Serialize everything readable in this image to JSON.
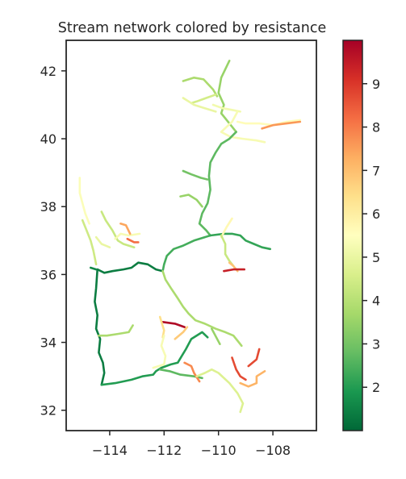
{
  "chart_data": {
    "type": "line",
    "title": "Stream network colored by resistance",
    "xlabel": "",
    "ylabel": "",
    "xlim": [
      -115.6,
      -106.4
    ],
    "ylim": [
      31.4,
      42.9
    ],
    "xticks": [
      -114,
      -112,
      -110,
      -108
    ],
    "xtick_labels": [
      "−114",
      "−112",
      "−110",
      "−108"
    ],
    "yticks": [
      32,
      34,
      36,
      38,
      40,
      42
    ],
    "ytick_labels": [
      "32",
      "34",
      "36",
      "38",
      "40",
      "42"
    ],
    "grid": false,
    "colorbar": {
      "colormap": "RdYlGn_r",
      "range": [
        1.0,
        10.0
      ],
      "ticks": [
        2,
        3,
        4,
        5,
        6,
        7,
        8,
        9
      ],
      "tick_labels": [
        "2",
        "3",
        "4",
        "5",
        "6",
        "7",
        "8",
        "9"
      ],
      "colors": [
        "#006837",
        "#1a9850",
        "#66bd63",
        "#a6d96a",
        "#d9ef8b",
        "#ffffbf",
        "#fee08b",
        "#fdae61",
        "#f46d43",
        "#d73027",
        "#a50026"
      ]
    },
    "series": [
      {
        "resistance": 3.5,
        "x": [
          -109.6,
          -109.9,
          -110.0,
          -109.8,
          -109.9,
          -109.6,
          -109.35
        ],
        "y": [
          42.3,
          41.8,
          41.35,
          41.0,
          40.75,
          40.45,
          40.2
        ]
      },
      {
        "resistance": 3.8,
        "x": [
          -111.3,
          -110.9,
          -110.55,
          -110.2,
          -110.05
        ],
        "y": [
          41.7,
          41.8,
          41.75,
          41.45,
          41.25
        ]
      },
      {
        "resistance": 4.5,
        "x": [
          -110.1,
          -110.45,
          -110.8,
          -111.0
        ],
        "y": [
          41.3,
          41.2,
          41.1,
          41.05
        ]
      },
      {
        "resistance": 5.2,
        "x": [
          -110.2,
          -109.85,
          -109.5,
          -109.2
        ],
        "y": [
          41.0,
          40.9,
          40.85,
          40.8
        ]
      },
      {
        "resistance": 5.0,
        "x": [
          -111.3,
          -110.9,
          -110.5,
          -110.1
        ],
        "y": [
          41.2,
          41.0,
          40.9,
          40.8
        ]
      },
      {
        "resistance": 5.6,
        "x": [
          -109.3,
          -109.0,
          -108.5,
          -108.0,
          -107.5,
          -107.0
        ],
        "y": [
          40.5,
          40.45,
          40.45,
          40.4,
          40.5,
          40.55
        ]
      },
      {
        "resistance": 7.6,
        "x": [
          -108.4,
          -108.0,
          -107.5,
          -107.0
        ],
        "y": [
          40.3,
          40.4,
          40.45,
          40.5
        ]
      },
      {
        "resistance": 5.3,
        "x": [
          -109.3,
          -109.5,
          -109.9,
          -109.55,
          -109.1,
          -108.6,
          -108.3
        ],
        "y": [
          40.8,
          40.5,
          40.2,
          40.05,
          40.0,
          39.95,
          39.9
        ]
      },
      {
        "resistance": 2.7,
        "x": [
          -109.35,
          -109.6,
          -109.9,
          -110.1,
          -110.3,
          -110.35,
          -110.3,
          -110.4,
          -110.6,
          -110.7,
          -110.45,
          -110.3
        ],
        "y": [
          40.2,
          40.0,
          39.85,
          39.6,
          39.3,
          38.9,
          38.5,
          38.1,
          37.8,
          37.5,
          37.3,
          37.15
        ]
      },
      {
        "resistance": 3.0,
        "x": [
          -111.3,
          -111.0,
          -110.65,
          -110.4
        ],
        "y": [
          39.05,
          38.95,
          38.85,
          38.8
        ]
      },
      {
        "resistance": 3.5,
        "x": [
          -111.4,
          -111.1,
          -110.8,
          -110.6
        ],
        "y": [
          38.3,
          38.35,
          38.2,
          38.0
        ]
      },
      {
        "resistance": 2.4,
        "x": [
          -110.3,
          -110.9,
          -111.3,
          -111.65,
          -111.9,
          -112.0,
          -112.05
        ],
        "y": [
          37.15,
          37.0,
          36.85,
          36.75,
          36.55,
          36.3,
          36.1
        ]
      },
      {
        "resistance": 2.2,
        "x": [
          -110.3,
          -109.8,
          -109.5,
          -109.2,
          -109.0,
          -108.7,
          -108.4,
          -108.1
        ],
        "y": [
          37.15,
          37.2,
          37.2,
          37.15,
          37.0,
          36.9,
          36.8,
          36.75
        ]
      },
      {
        "resistance": 5.7,
        "x": [
          -109.9,
          -109.7,
          -109.5
        ],
        "y": [
          37.1,
          37.4,
          37.65
        ]
      },
      {
        "resistance": 4.3,
        "x": [
          -109.9,
          -109.75,
          -109.75,
          -109.6,
          -109.45
        ],
        "y": [
          37.15,
          36.9,
          36.6,
          36.4,
          36.25
        ]
      },
      {
        "resistance": 6.9,
        "x": [
          -109.6,
          -109.45,
          -109.3
        ],
        "y": [
          36.35,
          36.25,
          36.1
        ]
      },
      {
        "resistance": 9.4,
        "x": [
          -109.8,
          -109.45,
          -109.05
        ],
        "y": [
          36.1,
          36.15,
          36.15
        ]
      },
      {
        "resistance": 1.4,
        "x": [
          -112.05,
          -112.3,
          -112.6,
          -112.95,
          -113.2,
          -113.5,
          -113.9,
          -114.2,
          -114.45,
          -114.5,
          -114.55,
          -114.45,
          -114.5,
          -114.35,
          -114.4,
          -114.25,
          -114.2,
          -114.3
        ],
        "y": [
          36.1,
          36.15,
          36.3,
          36.35,
          36.2,
          36.15,
          36.1,
          36.05,
          36.15,
          35.6,
          35.2,
          34.8,
          34.4,
          34.1,
          33.7,
          33.4,
          33.1,
          32.75
        ]
      },
      {
        "resistance": 1.6,
        "x": [
          -114.5,
          -114.7
        ],
        "y": [
          36.15,
          36.2
        ]
      },
      {
        "resistance": 2.0,
        "x": [
          -114.3,
          -113.8,
          -113.2,
          -112.8,
          -112.4,
          -112.3,
          -112.1,
          -111.75,
          -111.5,
          -111.35,
          -111.2,
          -111.0,
          -110.6,
          -110.4
        ],
        "y": [
          32.75,
          32.8,
          32.9,
          33.0,
          33.05,
          33.15,
          33.25,
          33.35,
          33.4,
          33.6,
          33.8,
          34.1,
          34.3,
          34.15
        ]
      },
      {
        "resistance": 2.7,
        "x": [
          -112.15,
          -111.8,
          -111.4,
          -110.9,
          -110.6
        ],
        "y": [
          33.2,
          33.15,
          33.05,
          33.0,
          32.95
        ]
      },
      {
        "resistance": 3.8,
        "x": [
          -112.05,
          -111.95,
          -111.75,
          -111.5,
          -111.3,
          -111.1,
          -110.85,
          -110.5,
          -110.1,
          -109.75,
          -109.45,
          -109.3,
          -109.15
        ],
        "y": [
          36.1,
          35.85,
          35.6,
          35.3,
          35.05,
          34.85,
          34.65,
          34.55,
          34.4,
          34.3,
          34.2,
          34.05,
          33.9
        ]
      },
      {
        "resistance": 3.5,
        "x": [
          -110.25,
          -109.95
        ],
        "y": [
          34.4,
          33.95
        ]
      },
      {
        "resistance": 3.8,
        "x": [
          -114.4,
          -114.1,
          -113.7,
          -113.3,
          -113.15
        ],
        "y": [
          34.2,
          34.2,
          34.25,
          34.3,
          34.5
        ]
      },
      {
        "resistance": 6.8,
        "x": [
          -111.6,
          -111.3,
          -111.15
        ],
        "y": [
          34.1,
          34.3,
          34.45
        ]
      },
      {
        "resistance": 9.8,
        "x": [
          -112.05,
          -111.6,
          -111.25
        ],
        "y": [
          34.6,
          34.55,
          34.45
        ]
      },
      {
        "resistance": 6.4,
        "x": [
          -112.15,
          -112.0,
          -112.05
        ],
        "y": [
          34.75,
          34.35,
          34.15
        ]
      },
      {
        "resistance": 5.3,
        "x": [
          -112.0,
          -112.1,
          -111.95,
          -112.0,
          -112.4
        ],
        "y": [
          34.2,
          33.9,
          33.6,
          33.35,
          33.25
        ]
      },
      {
        "resistance": 7.8,
        "x": [
          -111.25,
          -111.0,
          -110.9,
          -110.7
        ],
        "y": [
          33.4,
          33.3,
          33.1,
          32.85
        ]
      },
      {
        "resistance": 4.7,
        "x": [
          -110.8,
          -110.5,
          -110.25,
          -110.0,
          -109.6,
          -109.3,
          -109.1,
          -109.2
        ],
        "y": [
          33.0,
          33.1,
          33.2,
          33.1,
          32.8,
          32.5,
          32.2,
          31.95
        ]
      },
      {
        "resistance": 8.7,
        "x": [
          -109.5,
          -109.35,
          -109.2,
          -109.0
        ],
        "y": [
          33.55,
          33.2,
          33.0,
          32.9
        ]
      },
      {
        "resistance": 7.2,
        "x": [
          -109.2,
          -108.9,
          -108.6,
          -108.6,
          -108.3
        ],
        "y": [
          32.8,
          32.7,
          32.8,
          33.0,
          33.15
        ]
      },
      {
        "resistance": 8.7,
        "x": [
          -108.9,
          -108.6,
          -108.5
        ],
        "y": [
          33.3,
          33.5,
          33.8
        ]
      },
      {
        "resistance": 5.4,
        "x": [
          -115.1,
          -115.1,
          -115.0,
          -114.9,
          -114.75
        ],
        "y": [
          38.85,
          38.4,
          38.1,
          37.8,
          37.5
        ]
      },
      {
        "resistance": 4.4,
        "x": [
          -115.0,
          -114.85,
          -114.7,
          -114.6,
          -114.5
        ],
        "y": [
          37.6,
          37.3,
          37.0,
          36.7,
          36.3
        ]
      },
      {
        "resistance": 4.3,
        "x": [
          -114.3,
          -114.15,
          -113.9,
          -113.7,
          -113.5,
          -113.3,
          -113.1
        ],
        "y": [
          37.85,
          37.6,
          37.3,
          37.0,
          36.9,
          36.85,
          36.8
        ]
      },
      {
        "resistance": 5.0,
        "x": [
          -114.5,
          -114.3,
          -114.0
        ],
        "y": [
          37.1,
          36.9,
          36.8
        ]
      },
      {
        "resistance": 5.3,
        "x": [
          -113.8,
          -113.6,
          -113.3,
          -112.9
        ],
        "y": [
          37.05,
          37.2,
          37.15,
          37.2
        ]
      },
      {
        "resistance": 7.4,
        "x": [
          -113.6,
          -113.4,
          -113.25
        ],
        "y": [
          37.5,
          37.45,
          37.2
        ]
      },
      {
        "resistance": 8.2,
        "x": [
          -113.35,
          -113.1,
          -112.95
        ],
        "y": [
          37.05,
          36.95,
          36.95
        ]
      }
    ]
  }
}
